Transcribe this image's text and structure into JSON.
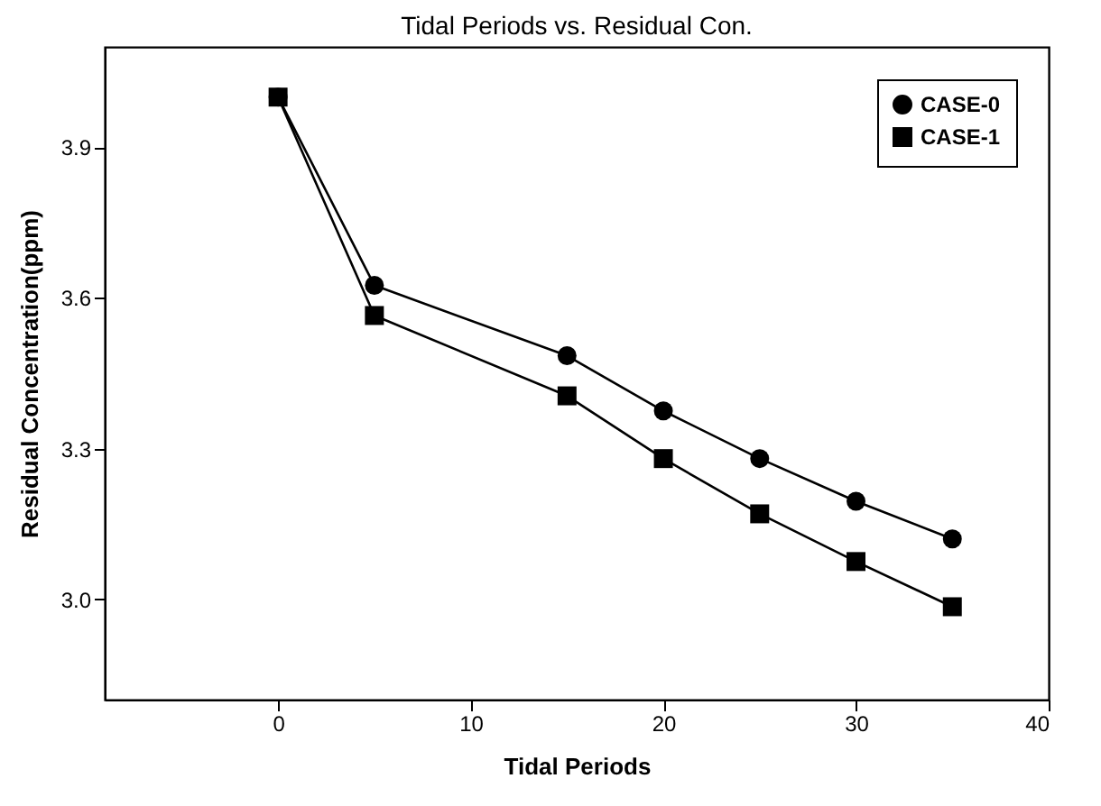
{
  "chart_data": {
    "type": "line",
    "title": "Tidal Periods vs. Residual Con.",
    "xlabel": "Tidal Periods",
    "ylabel": "Residual Concentration(ppm)",
    "x": [
      0,
      5,
      15,
      20,
      25,
      30,
      35
    ],
    "series": [
      {
        "name": "CASE-0",
        "color": "#000000",
        "marker": "circle",
        "values": [
          4.0,
          3.625,
          3.485,
          3.375,
          3.28,
          3.195,
          3.12
        ]
      },
      {
        "name": "CASE-1",
        "color": "#000000",
        "marker": "square",
        "values": [
          4.0,
          3.565,
          3.405,
          3.28,
          3.17,
          3.075,
          2.985
        ]
      }
    ],
    "xlim": [
      -9,
      40
    ],
    "xticks": [
      0,
      10,
      20,
      30,
      40
    ],
    "ylim": [
      2.8,
      4.1
    ],
    "yticks": [
      {
        "value": 3.0,
        "label": "3.0"
      },
      {
        "value": 3.3,
        "label": "3.3"
      },
      {
        "value": 3.6,
        "label": "3.6"
      },
      {
        "value": 3.9,
        "label": "3.9"
      }
    ],
    "grid": false,
    "legend": "top right",
    "line_style": "solid"
  }
}
